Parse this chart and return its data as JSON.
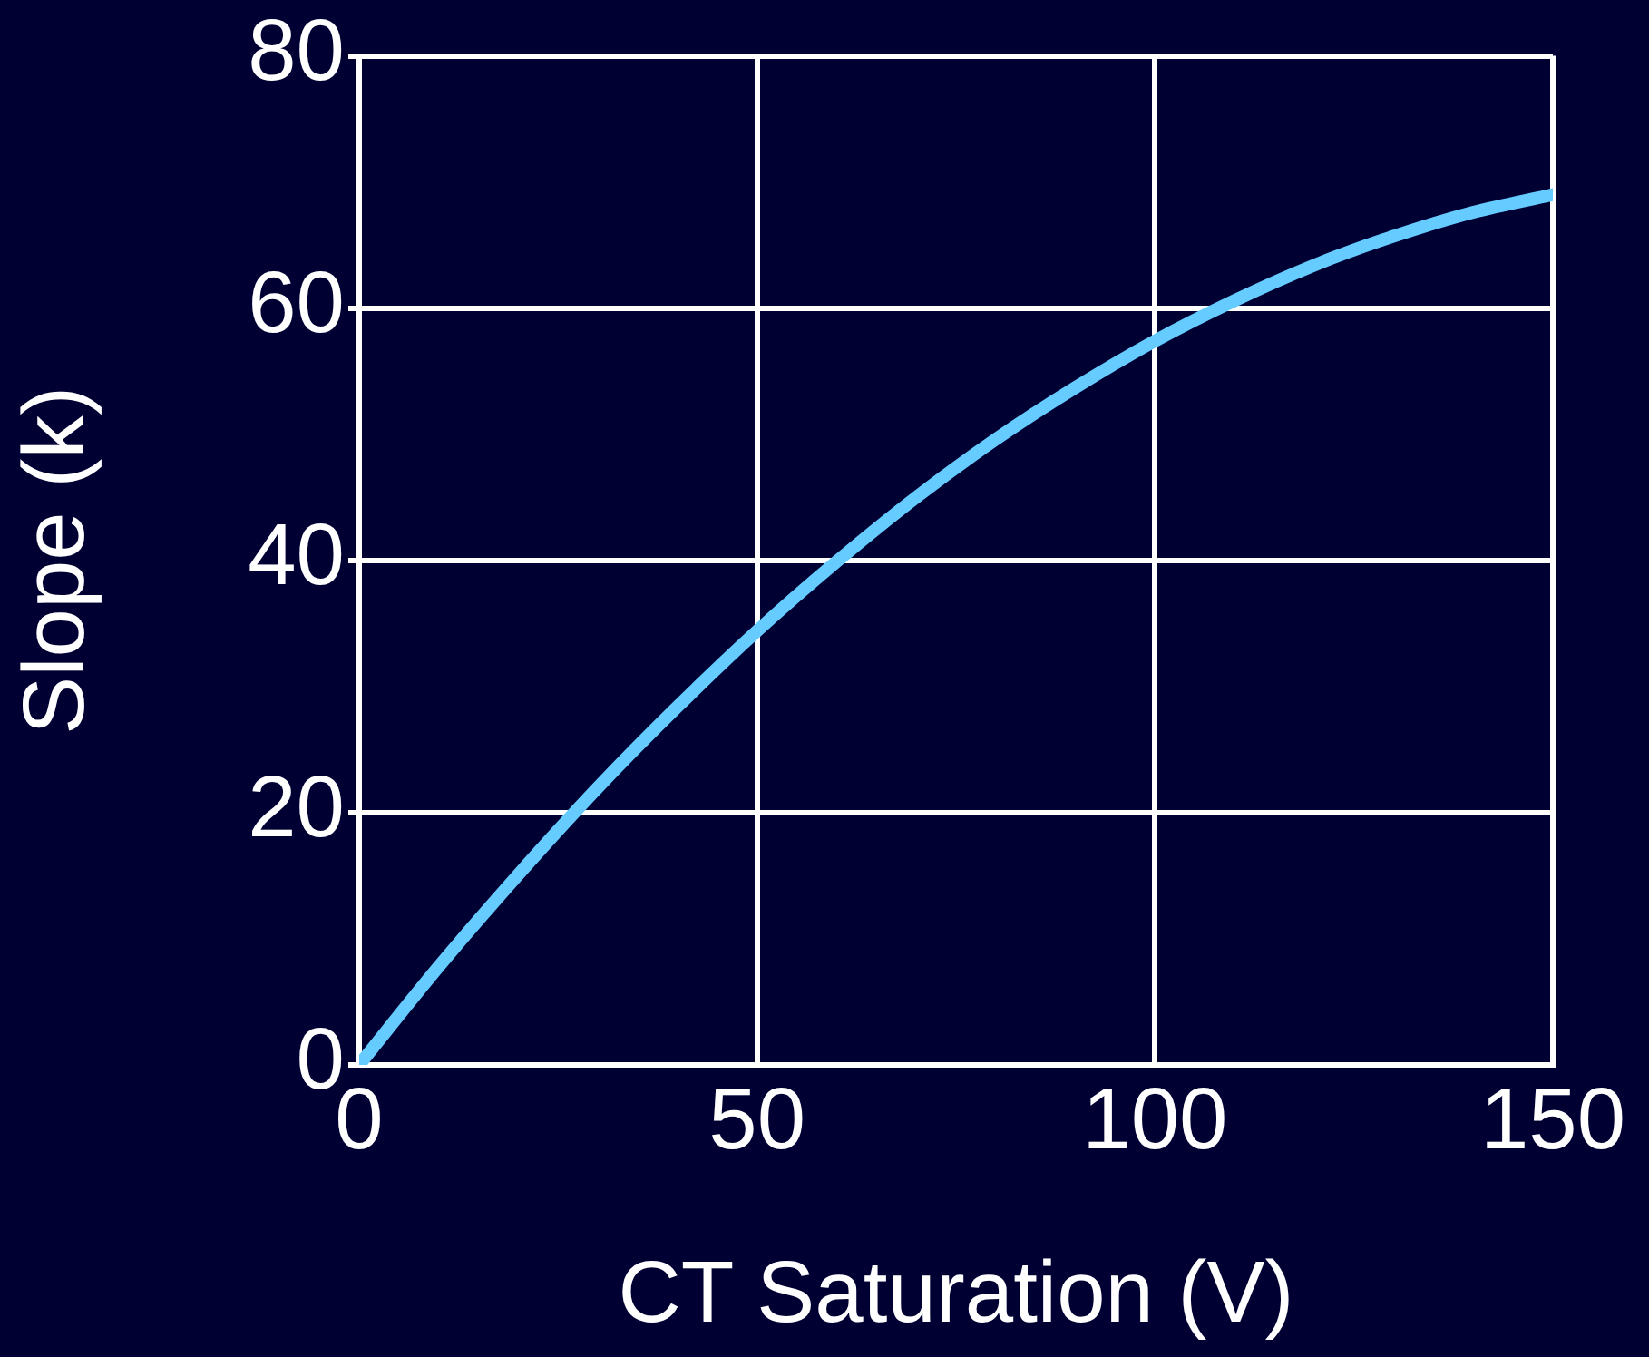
{
  "chart_data": {
    "type": "line",
    "xlabel": "CT Saturation (V)",
    "ylabel": "Slope (k)",
    "x": [
      0,
      10,
      20,
      30,
      40,
      50,
      60,
      70,
      80,
      90,
      100,
      110,
      120,
      130,
      140,
      150
    ],
    "series": [
      {
        "color": "#66ccff",
        "values": [
          0,
          7.8,
          15.1,
          22.0,
          28.4,
          34.4,
          39.9,
          45.0,
          49.6,
          53.7,
          57.4,
          60.6,
          63.4,
          65.7,
          67.6,
          69.0
        ]
      }
    ],
    "xlim": [
      0,
      150
    ],
    "xticks": [
      0,
      50,
      100,
      150
    ],
    "ylim": [
      0,
      80
    ],
    "yticks": [
      0,
      20,
      40,
      60,
      80
    ],
    "grid": true,
    "legend": false,
    "marker": "none",
    "line_style": "solid"
  }
}
